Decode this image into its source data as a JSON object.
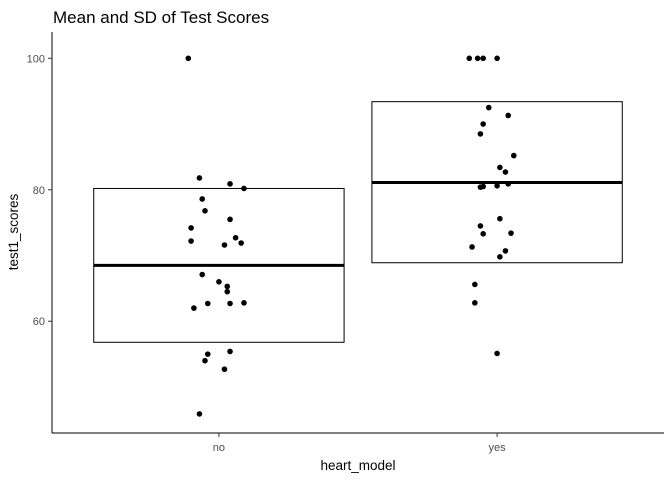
{
  "chart_data": {
    "type": "scatter",
    "title": "Mean and SD of Test Scores",
    "xlabel": "heart_model",
    "ylabel": "test1_scores",
    "categories": [
      "no",
      "yes"
    ],
    "ylim": [
      43,
      104
    ],
    "yticks": [
      60,
      80,
      100
    ],
    "grid": false,
    "summary": [
      {
        "category": "no",
        "mean": 68.5,
        "lower": 56.8,
        "upper": 80.2
      },
      {
        "category": "yes",
        "mean": 81.1,
        "lower": 68.9,
        "upper": 93.4
      }
    ],
    "series": [
      {
        "category": "no",
        "points": [
          {
            "x": 0.89,
            "y": 100
          },
          {
            "x": 0.93,
            "y": 81.8
          },
          {
            "x": 1.04,
            "y": 80.9
          },
          {
            "x": 1.09,
            "y": 80.2
          },
          {
            "x": 0.94,
            "y": 78.6
          },
          {
            "x": 0.95,
            "y": 76.8
          },
          {
            "x": 1.04,
            "y": 75.5
          },
          {
            "x": 0.9,
            "y": 74.2
          },
          {
            "x": 1.06,
            "y": 72.7
          },
          {
            "x": 0.9,
            "y": 72.2
          },
          {
            "x": 1.08,
            "y": 71.9
          },
          {
            "x": 1.02,
            "y": 71.6
          },
          {
            "x": 0.94,
            "y": 67.1
          },
          {
            "x": 1.0,
            "y": 66.0
          },
          {
            "x": 1.03,
            "y": 65.3
          },
          {
            "x": 1.03,
            "y": 64.5
          },
          {
            "x": 0.96,
            "y": 62.7
          },
          {
            "x": 1.04,
            "y": 62.7
          },
          {
            "x": 1.09,
            "y": 62.8
          },
          {
            "x": 0.91,
            "y": 62.0
          },
          {
            "x": 1.04,
            "y": 55.4
          },
          {
            "x": 0.96,
            "y": 55.0
          },
          {
            "x": 0.95,
            "y": 54.0
          },
          {
            "x": 1.02,
            "y": 52.7
          },
          {
            "x": 0.93,
            "y": 45.9
          }
        ]
      },
      {
        "category": "yes",
        "points": [
          {
            "x": 1.9,
            "y": 100
          },
          {
            "x": 1.93,
            "y": 100
          },
          {
            "x": 1.95,
            "y": 100
          },
          {
            "x": 2.0,
            "y": 100
          },
          {
            "x": 1.97,
            "y": 92.5
          },
          {
            "x": 2.04,
            "y": 91.3
          },
          {
            "x": 1.95,
            "y": 90.0
          },
          {
            "x": 1.94,
            "y": 88.5
          },
          {
            "x": 2.06,
            "y": 85.2
          },
          {
            "x": 2.01,
            "y": 83.4
          },
          {
            "x": 2.03,
            "y": 82.7
          },
          {
            "x": 2.04,
            "y": 80.9
          },
          {
            "x": 1.95,
            "y": 80.5
          },
          {
            "x": 1.94,
            "y": 80.4
          },
          {
            "x": 2.0,
            "y": 80.6
          },
          {
            "x": 2.01,
            "y": 75.6
          },
          {
            "x": 1.94,
            "y": 74.5
          },
          {
            "x": 1.95,
            "y": 73.3
          },
          {
            "x": 2.05,
            "y": 73.4
          },
          {
            "x": 1.91,
            "y": 71.3
          },
          {
            "x": 2.03,
            "y": 70.7
          },
          {
            "x": 2.01,
            "y": 69.8
          },
          {
            "x": 1.92,
            "y": 65.6
          },
          {
            "x": 1.92,
            "y": 62.8
          },
          {
            "x": 2.0,
            "y": 55.1
          }
        ]
      }
    ]
  }
}
